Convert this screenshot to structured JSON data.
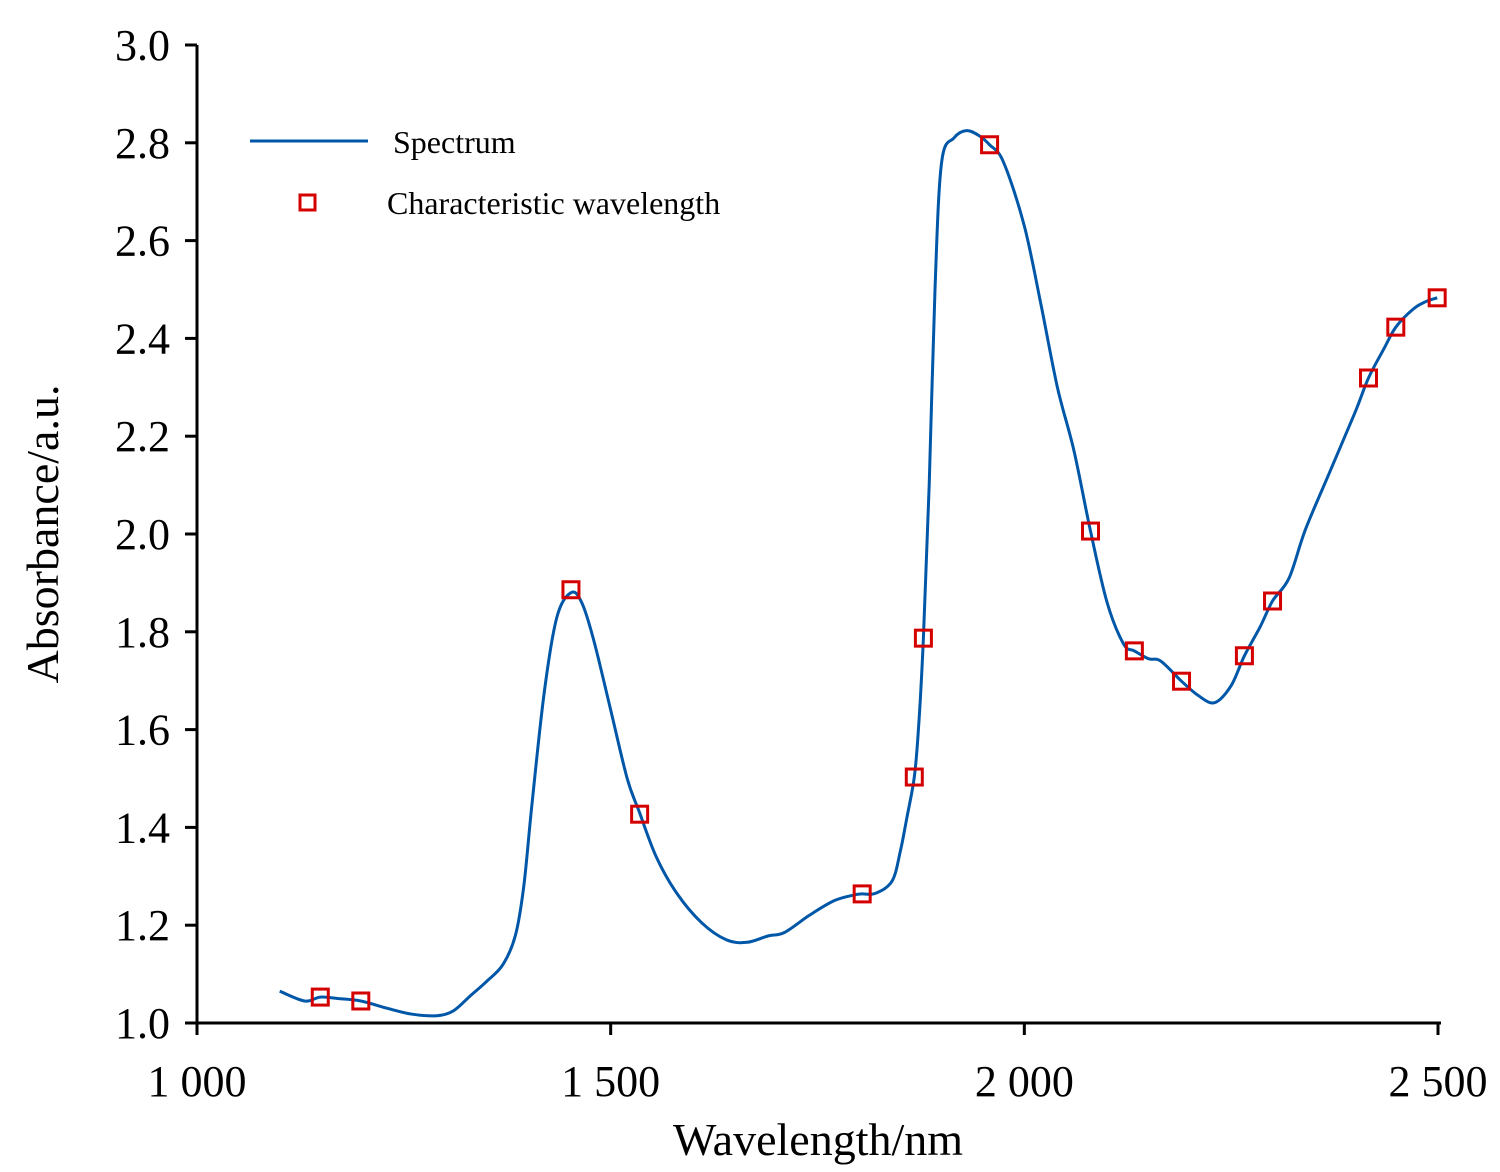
{
  "chart_data": {
    "type": "line",
    "title": "",
    "xlabel": "Wavelength/nm",
    "ylabel": "Absorbance/a.u.",
    "xlim": [
      1000,
      2500
    ],
    "ylim": [
      1.0,
      3.0
    ],
    "x_ticks": [
      1000,
      1500,
      2000,
      2500
    ],
    "x_tick_labels": [
      "1 000",
      "1 500",
      "2 000",
      "2 500"
    ],
    "y_ticks": [
      1.0,
      1.2,
      1.4,
      1.6,
      1.8,
      2.0,
      2.2,
      2.4,
      2.6,
      2.8,
      3.0
    ],
    "y_tick_labels": [
      "1.0",
      "1.2",
      "1.4",
      "1.6",
      "1.8",
      "2.0",
      "2.2",
      "2.4",
      "2.6",
      "2.8",
      "3.0"
    ],
    "grid": false,
    "legend_position": "top-left",
    "series": [
      {
        "name": "Spectrum",
        "kind": "line",
        "color": "#0057a8",
        "x": [
          1100,
          1130,
          1149,
          1170,
          1198,
          1230,
          1260,
          1290,
          1310,
          1330,
          1350,
          1370,
          1385,
          1395,
          1405,
          1420,
          1435,
          1452,
          1465,
          1480,
          1500,
          1520,
          1535,
          1555,
          1580,
          1610,
          1640,
          1665,
          1690,
          1710,
          1740,
          1770,
          1795,
          1804,
          1820,
          1840,
          1850,
          1858,
          1867,
          1872,
          1878,
          1885,
          1892,
          1900,
          1915,
          1930,
          1945,
          1958,
          1975,
          2000,
          2020,
          2040,
          2060,
          2080,
          2100,
          2120,
          2133,
          2150,
          2165,
          2190,
          2210,
          2230,
          2250,
          2266,
          2285,
          2300,
          2320,
          2340,
          2370,
          2400,
          2416,
          2435,
          2449,
          2470,
          2485,
          2499
        ],
        "y": [
          1.065,
          1.045,
          1.053,
          1.05,
          1.045,
          1.03,
          1.018,
          1.015,
          1.025,
          1.055,
          1.085,
          1.12,
          1.18,
          1.28,
          1.45,
          1.68,
          1.83,
          1.88,
          1.86,
          1.78,
          1.64,
          1.5,
          1.43,
          1.34,
          1.265,
          1.205,
          1.17,
          1.165,
          1.178,
          1.185,
          1.22,
          1.25,
          1.262,
          1.264,
          1.265,
          1.29,
          1.35,
          1.42,
          1.503,
          1.6,
          1.787,
          2.1,
          2.5,
          2.76,
          2.81,
          2.825,
          2.815,
          2.796,
          2.76,
          2.63,
          2.47,
          2.3,
          2.17,
          2.006,
          1.86,
          1.775,
          1.761,
          1.745,
          1.74,
          1.699,
          1.67,
          1.655,
          1.69,
          1.751,
          1.81,
          1.863,
          1.91,
          2.01,
          2.13,
          2.25,
          2.319,
          2.38,
          2.423,
          2.46,
          2.475,
          2.483
        ]
      },
      {
        "name": "Characteristic wavelength",
        "kind": "scatter",
        "marker": "square-open",
        "color": "#d40000",
        "x": [
          1149,
          1198,
          1452,
          1535,
          1804,
          1867,
          1878,
          1958,
          2080,
          2133,
          2190,
          2266,
          2300,
          2416,
          2449,
          2499
        ],
        "y": [
          1.053,
          1.045,
          1.886,
          1.427,
          1.264,
          1.503,
          1.787,
          2.796,
          2.006,
          1.761,
          1.699,
          1.751,
          1.863,
          2.319,
          2.423,
          2.483
        ]
      }
    ]
  }
}
